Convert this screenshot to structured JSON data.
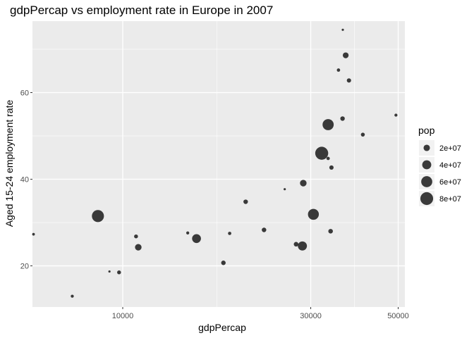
{
  "chart_data": {
    "type": "scatter",
    "title": "gdpPercap vs employment rate in Europe in 2007",
    "xlabel": "gdpPercap",
    "ylabel": "Aged 15-24 employment rate",
    "x_scale": "log10",
    "xlim": [
      5900,
      52000
    ],
    "ylim": [
      10.5,
      76.5
    ],
    "x_ticks": [
      10000,
      30000,
      50000
    ],
    "x_tick_labels": [
      "10000",
      "30000",
      "50000"
    ],
    "y_ticks": [
      20,
      40,
      60
    ],
    "y_tick_labels": [
      "20",
      "40",
      "60"
    ],
    "grid": true,
    "point_color": "#1a1a1a",
    "panel_color": "#ebebeb",
    "legend": {
      "title": "pop",
      "placement": "right",
      "entries": [
        {
          "label": "2e+07",
          "value": 20000000
        },
        {
          "label": "4e+07",
          "value": 40000000
        },
        {
          "label": "6e+07",
          "value": 60000000
        },
        {
          "label": "8e+07",
          "value": 80000000
        }
      ]
    },
    "points": [
      {
        "x": 5937,
        "y": 27.3,
        "pop": 3600000
      },
      {
        "x": 7446,
        "y": 13.0,
        "pop": 4500000
      },
      {
        "x": 8650,
        "y": 31.5,
        "pop": 71000000
      },
      {
        "x": 9253,
        "y": 18.7,
        "pop": 700000
      },
      {
        "x": 9787,
        "y": 18.5,
        "pop": 7300000
      },
      {
        "x": 10808,
        "y": 26.8,
        "pop": 7300000
      },
      {
        "x": 10950,
        "y": 24.3,
        "pop": 21000000
      },
      {
        "x": 14619,
        "y": 27.6,
        "pop": 4500000
      },
      {
        "x": 15390,
        "y": 26.3,
        "pop": 38500000
      },
      {
        "x": 18009,
        "y": 20.7,
        "pop": 10000000
      },
      {
        "x": 18678,
        "y": 27.5,
        "pop": 5400000
      },
      {
        "x": 20510,
        "y": 34.8,
        "pop": 10000000
      },
      {
        "x": 22833,
        "y": 28.3,
        "pop": 10000000
      },
      {
        "x": 25768,
        "y": 37.7,
        "pop": 2000000
      },
      {
        "x": 27538,
        "y": 25.0,
        "pop": 10500000
      },
      {
        "x": 28570,
        "y": 24.6,
        "pop": 40400000
      },
      {
        "x": 28718,
        "y": 39.1,
        "pop": 21000000
      },
      {
        "x": 30470,
        "y": 31.9,
        "pop": 58000000
      },
      {
        "x": 31985,
        "y": 46.0,
        "pop": 82400000
      },
      {
        "x": 33207,
        "y": 52.6,
        "pop": 60800000
      },
      {
        "x": 33207,
        "y": 44.8,
        "pop": 5500000
      },
      {
        "x": 33860,
        "y": 42.7,
        "pop": 9000000
      },
      {
        "x": 33692,
        "y": 28.0,
        "pop": 10400000
      },
      {
        "x": 35278,
        "y": 65.2,
        "pop": 5500000
      },
      {
        "x": 36126,
        "y": 54.0,
        "pop": 10000000
      },
      {
        "x": 36181,
        "y": 74.5,
        "pop": 300000
      },
      {
        "x": 36797,
        "y": 68.6,
        "pop": 16500000
      },
      {
        "x": 37506,
        "y": 62.8,
        "pop": 9000000
      },
      {
        "x": 40676,
        "y": 50.3,
        "pop": 7500000
      },
      {
        "x": 49357,
        "y": 54.8,
        "pop": 4600000
      }
    ]
  }
}
